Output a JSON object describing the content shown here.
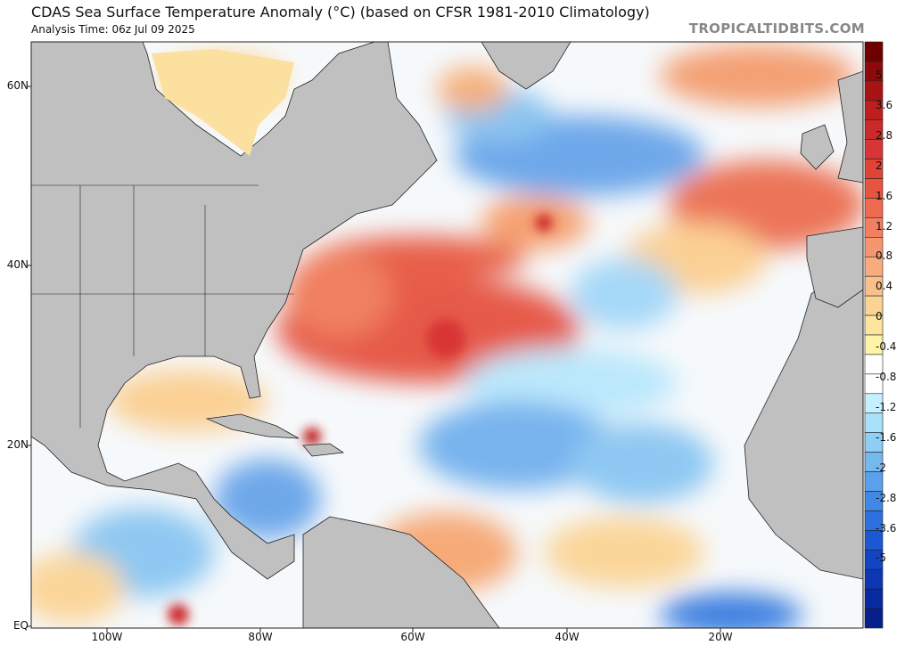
{
  "header": {
    "title": "CDAS Sea Surface Temperature Anomaly (°C) (based on CFSR 1981-2010 Climatology)",
    "subtitle": "Analysis Time: 06z Jul 09 2025",
    "brand": "TROPICALTIDBITS.COM"
  },
  "axes": {
    "lat_labels": [
      "60N",
      "40N",
      "20N",
      "EQ"
    ],
    "lon_labels": [
      "100W",
      "80W",
      "60W",
      "40W",
      "20W"
    ]
  },
  "colorbar": {
    "labels": [
      "5",
      "3.6",
      "2.8",
      "2",
      "1.6",
      "1.2",
      "0.8",
      "0.4",
      "0",
      "-0.4",
      "-0.8",
      "-1.2",
      "-1.6",
      "-2",
      "-2.8",
      "-3.6",
      "-5"
    ],
    "colors": [
      "#6e0000",
      "#8c0a0a",
      "#a81414",
      "#be1e1e",
      "#cc2a2a",
      "#d83636",
      "#e04436",
      "#e85440",
      "#ee6a50",
      "#f28060",
      "#f59670",
      "#f8ab7e",
      "#f9c08a",
      "#fbd494",
      "#fde59e",
      "#fff3a8",
      "#ffffff",
      "#ffffff",
      "#c4f0ff",
      "#a8e0fa",
      "#8ecdf5",
      "#74b8f0",
      "#5aa0ea",
      "#4088e4",
      "#2c70de",
      "#1c58d4",
      "#1244c6",
      "#0c36b4",
      "#082aa0",
      "#061f8c"
    ]
  },
  "colors": {
    "land": "#c0c0c0",
    "border": "#222222"
  }
}
